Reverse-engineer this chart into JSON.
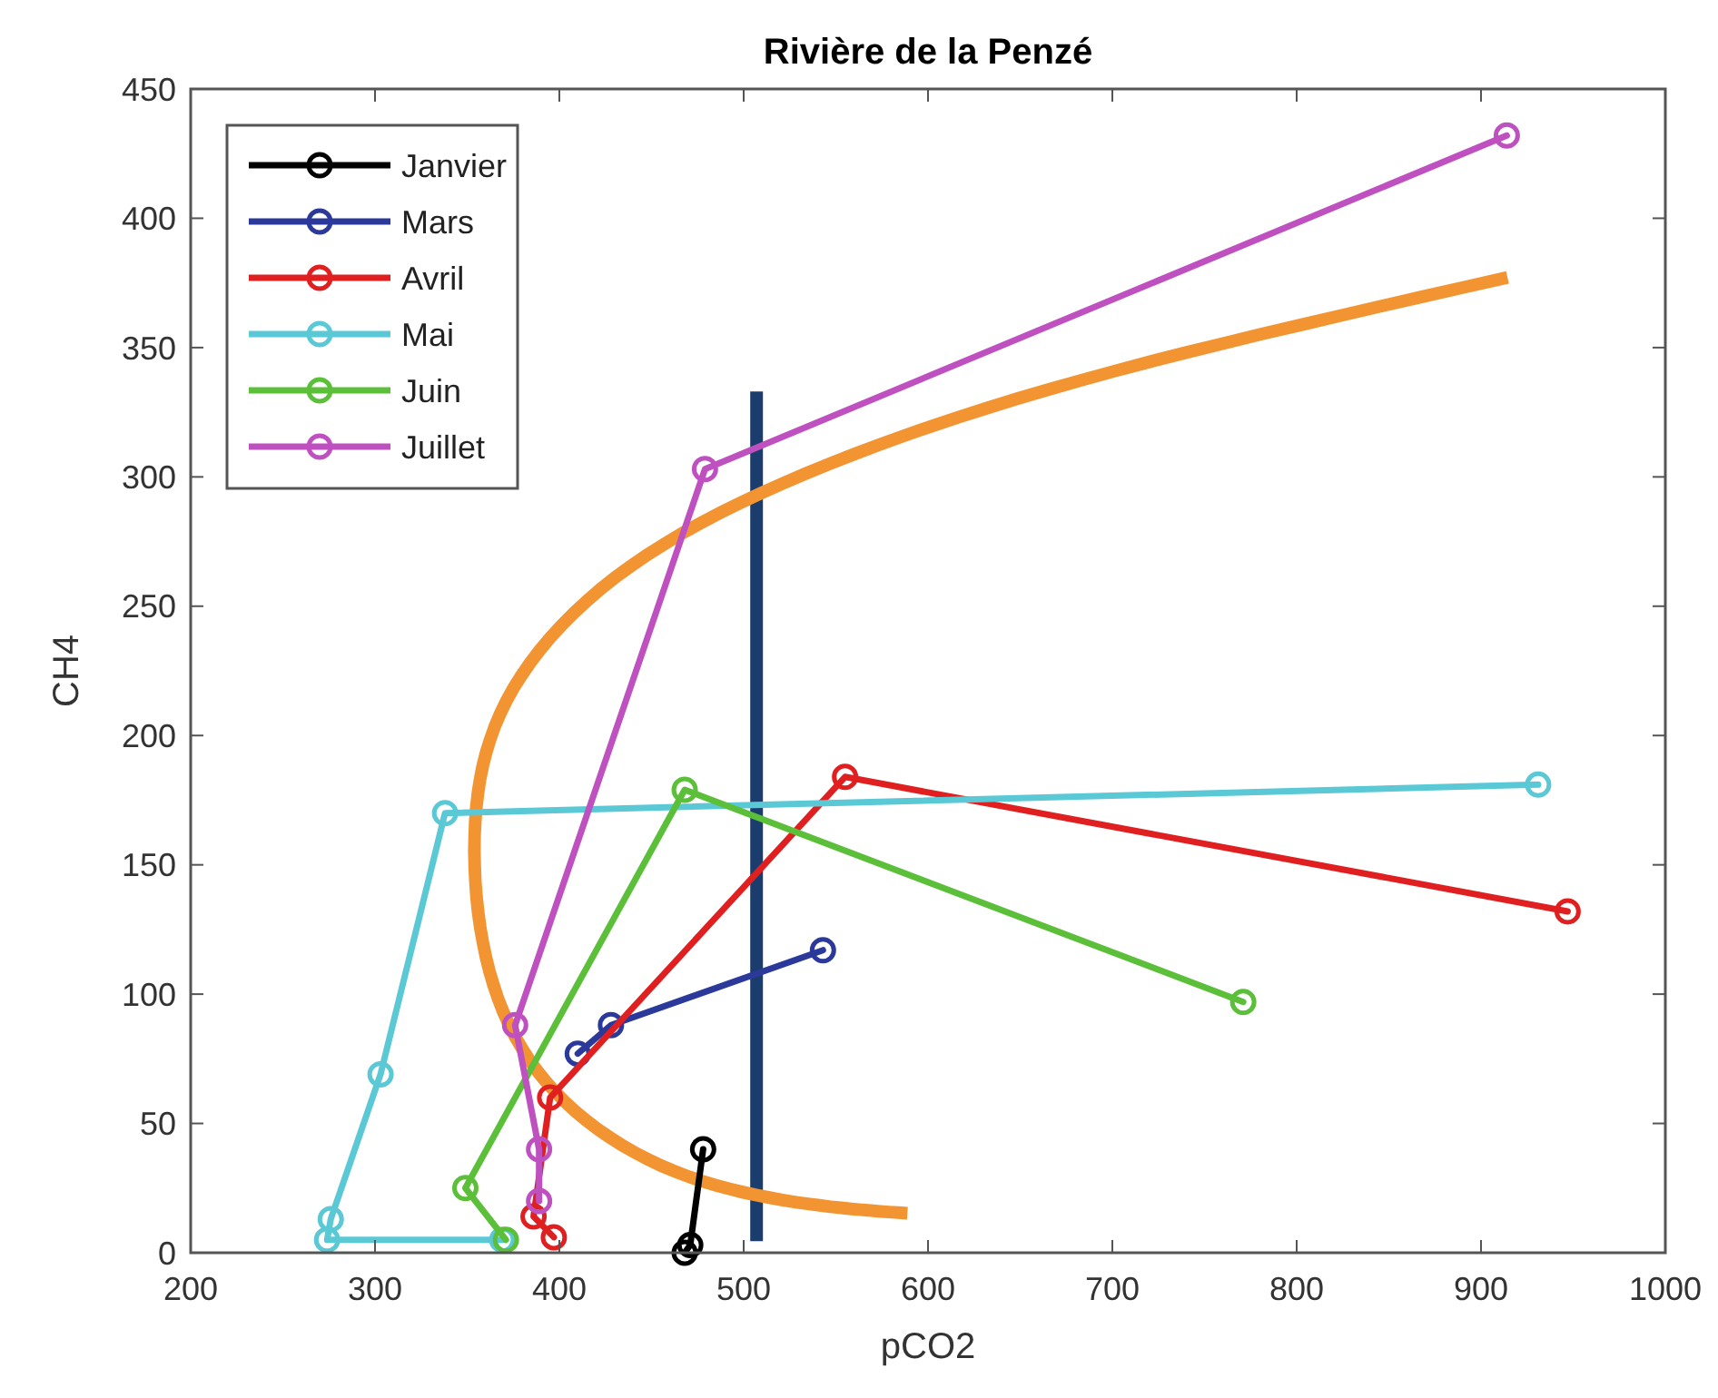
{
  "chart_data": {
    "type": "line",
    "title": "Rivière de la Penzé",
    "xlabel": "pCO2",
    "ylabel": "CH4",
    "xlim": [
      200,
      1000
    ],
    "xticks": [
      200,
      300,
      400,
      500,
      600,
      700,
      800,
      900,
      1000
    ],
    "ylim": [
      0,
      450
    ],
    "yticks": [
      0,
      50,
      100,
      150,
      200,
      250,
      300,
      350,
      400,
      450
    ],
    "grid": false,
    "legend": "top left",
    "marker": "circle",
    "line_style": "solid",
    "ref_lines": [
      {
        "axis": "x",
        "value": 507,
        "label": null,
        "color": "#1a3d6e"
      }
    ],
    "series": [
      {
        "name": "Janvier",
        "color": "#000000",
        "x": [
          478,
          471,
          468
        ],
        "values": [
          40,
          3,
          0
        ]
      },
      {
        "name": "Mars",
        "color": "#2b3a9a",
        "x": [
          410,
          428,
          543
        ],
        "values": [
          77,
          88,
          117
        ]
      },
      {
        "name": "Avril",
        "color": "#e02020",
        "x": [
          397,
          386,
          395,
          555,
          947
        ],
        "values": [
          6,
          14,
          60,
          184,
          132
        ]
      },
      {
        "name": "Mai",
        "color": "#5bc8d6",
        "x": [
          369,
          274,
          276,
          303,
          338,
          931
        ],
        "values": [
          5,
          5,
          13,
          69,
          170,
          181
        ]
      },
      {
        "name": "Juin",
        "color": "#5cbf3a",
        "x": [
          371,
          349,
          468,
          771
        ],
        "values": [
          5,
          25,
          179,
          97
        ]
      },
      {
        "name": "Juillet",
        "color": "#bf50c0",
        "x": [
          389,
          389,
          376,
          479,
          914
        ],
        "values": [
          20,
          40,
          88,
          303,
          432
        ]
      }
    ]
  }
}
